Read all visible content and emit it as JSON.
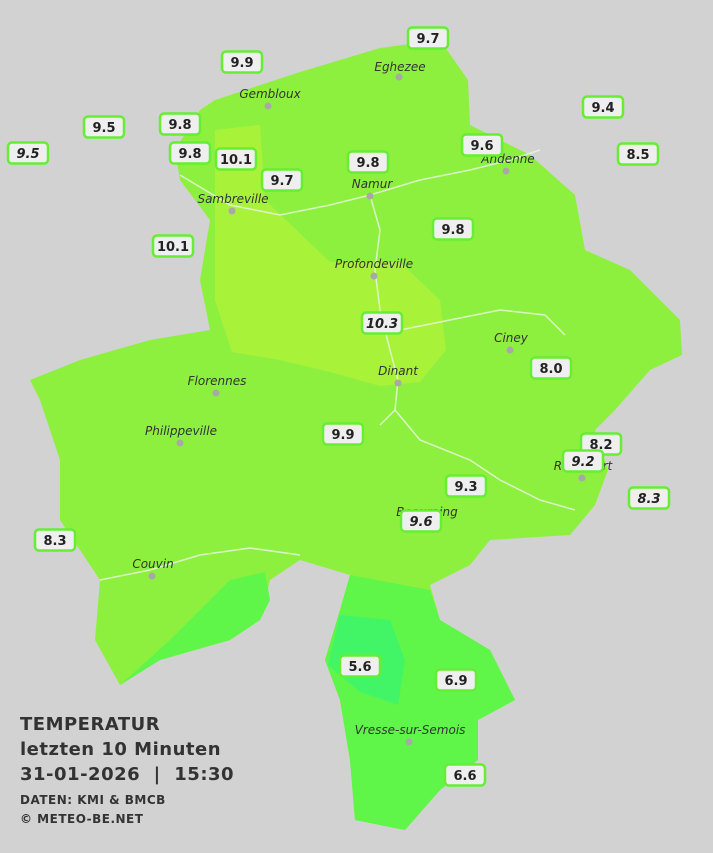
{
  "header": {
    "title": "TEMPERATUR",
    "subtitle": "letzten 10 Minuten",
    "datetime": "31-01-2026  |  15:30",
    "source": "DATEN: KMI & BMCB",
    "copyright": "© METEO-BE.NET"
  },
  "cities": [
    "Eghezee",
    "Gembloux",
    "Andenne",
    "Namur",
    "Sambreville",
    "Profondeville",
    "Ciney",
    "Dinant",
    "Florennes",
    "Philippeville",
    "Rochefort",
    "Beauraing",
    "Couvin",
    "Vresse-sur-Semois"
  ],
  "stations": [
    "9.7",
    "9.9",
    "9.4",
    "9.5",
    "9.5",
    "9.8",
    "9.8",
    "10.1",
    "9.6",
    "8.5",
    "9.8",
    "9.7",
    "9.8",
    "10.1",
    "10.3",
    "8.0",
    "9.9",
    "8.2",
    "9.2",
    "9.3",
    "8.3",
    "9.6",
    "8.3",
    "5.6",
    "6.9",
    "6.6"
  ]
}
